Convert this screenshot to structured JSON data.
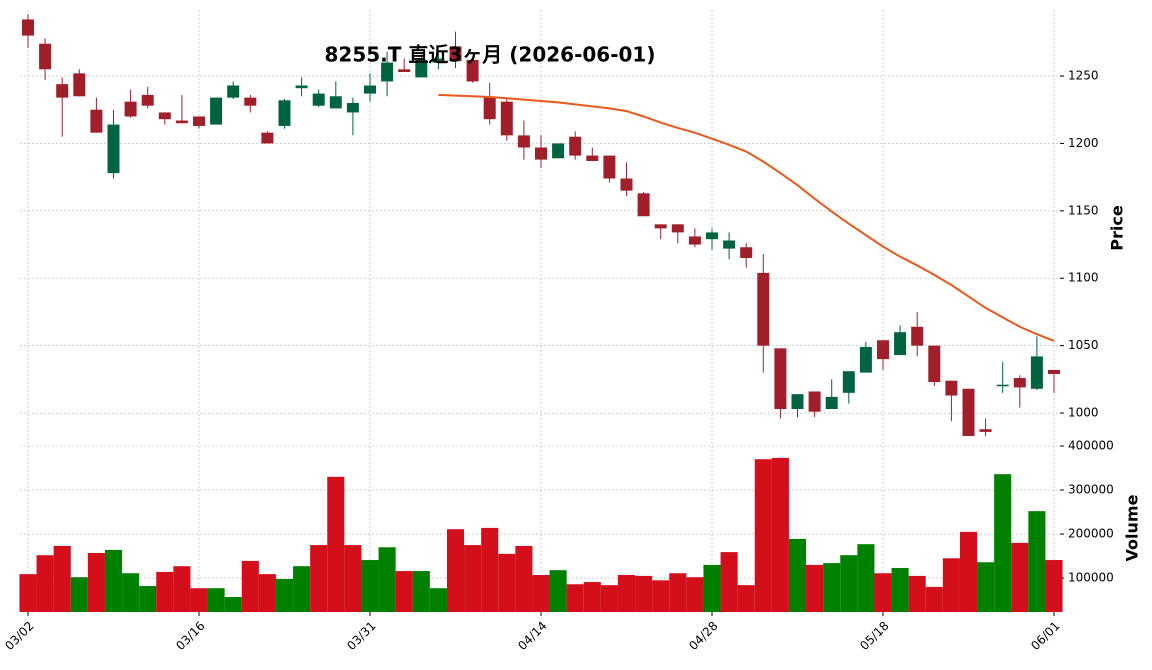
{
  "chart_data": {
    "type": "candlestick",
    "title": "8255.T 直近3ヶ月 (2026-06-01)",
    "categories": [
      "03/02",
      null,
      null,
      null,
      null,
      null,
      null,
      null,
      null,
      null,
      "03/16",
      null,
      null,
      null,
      null,
      null,
      null,
      null,
      null,
      null,
      "03/31",
      null,
      null,
      null,
      null,
      null,
      null,
      null,
      null,
      null,
      "04/14",
      null,
      null,
      null,
      null,
      null,
      null,
      null,
      null,
      null,
      "04/28",
      null,
      null,
      null,
      null,
      null,
      null,
      null,
      null,
      null,
      "05/18",
      null,
      null,
      null,
      null,
      null,
      null,
      null,
      null,
      null,
      "06/01"
    ],
    "open": [
      1292,
      1274,
      1244,
      1252,
      1225,
      1178,
      1231,
      1236,
      1223,
      1217,
      1220,
      1214,
      1234,
      1234,
      1208,
      1213,
      1241,
      1228,
      1226,
      1223,
      1237,
      1246,
      1255,
      1249,
      1260,
      1272,
      1262,
      1234,
      1231,
      1206,
      1197,
      1189,
      1205,
      1191,
      1191,
      1174,
      1163,
      1140,
      1140,
      1131,
      1129,
      1122,
      1123,
      1104,
      1048,
      1003,
      1016,
      1003,
      1015,
      1030,
      1054,
      1043,
      1064,
      1050,
      1024,
      1018,
      988,
      1020,
      1026,
      1018,
      1032
    ],
    "high": [
      1296,
      1278,
      1249,
      1255,
      1234,
      1225,
      1240,
      1242,
      1223,
      1236,
      1220,
      1234,
      1246,
      1236,
      1209,
      1233,
      1249,
      1240,
      1246,
      1234,
      1252,
      1268,
      1263,
      1266,
      1267,
      1283,
      1263,
      1245,
      1233,
      1217,
      1206,
      1200,
      1209,
      1197,
      1191,
      1186,
      1164,
      1140,
      1140,
      1137,
      1137,
      1134,
      1126,
      1118,
      1048,
      1014,
      1016,
      1025,
      1031,
      1053,
      1054,
      1065,
      1075,
      1050,
      1024,
      1018,
      996,
      1038,
      1028,
      1057,
      1032
    ],
    "low": [
      1271,
      1247,
      1205,
      1235,
      1208,
      1174,
      1219,
      1226,
      1214,
      1215,
      1211,
      1214,
      1233,
      1223,
      1200,
      1211,
      1235,
      1227,
      1226,
      1206,
      1231,
      1235,
      1253,
      1249,
      1255,
      1256,
      1245,
      1214,
      1202,
      1188,
      1182,
      1189,
      1188,
      1187,
      1171,
      1161,
      1146,
      1129,
      1126,
      1123,
      1121,
      1114,
      1108,
      1030,
      996,
      997,
      997,
      1003,
      1007,
      1030,
      1032,
      1043,
      1042,
      1020,
      994,
      983,
      983,
      1015,
      1004,
      1017,
      1015
    ],
    "close": [
      1280,
      1255,
      1234,
      1235,
      1208,
      1214,
      1220,
      1228,
      1218,
      1215,
      1213,
      1234,
      1243,
      1228,
      1200,
      1232,
      1243,
      1237,
      1235,
      1230,
      1243,
      1260,
      1253,
      1262,
      1263,
      1261,
      1246,
      1218,
      1206,
      1197,
      1188,
      1200,
      1191,
      1187,
      1174,
      1165,
      1146,
      1137,
      1134,
      1125,
      1134,
      1128,
      1115,
      1050,
      1003,
      1014,
      1001,
      1012,
      1031,
      1049,
      1040,
      1060,
      1050,
      1023,
      1013,
      983,
      986,
      1021,
      1019,
      1042,
      1029
    ],
    "up_color": "#006340",
    "down_color": "#a01f2a",
    "moving_average": {
      "color": "#e8581a",
      "values": [
        null,
        null,
        null,
        null,
        null,
        null,
        null,
        null,
        null,
        null,
        null,
        null,
        null,
        null,
        null,
        null,
        null,
        null,
        null,
        null,
        null,
        null,
        null,
        null,
        1236,
        1235.5,
        1235,
        1234.5,
        1233.5,
        1232.5,
        1231.5,
        1230.5,
        1229,
        1227.5,
        1226,
        1224,
        1220,
        1215.5,
        1211.5,
        1208,
        1203.5,
        1199,
        1194,
        1186.5,
        1178,
        1169,
        1159,
        1149.5,
        1140.5,
        1132,
        1123.5,
        1116,
        1109.5,
        1102.5,
        1095,
        1086.5,
        1078,
        1071,
        1064,
        1058.5,
        1053.5
      ]
    },
    "ylabel": "Price",
    "ylim": [
      980,
      1299
    ],
    "yticks": [
      1000,
      1050,
      1100,
      1150,
      1200,
      1250
    ],
    "grid": true,
    "volume": {
      "ylabel": "Volume",
      "values": [
        109000,
        152000,
        173000,
        102000,
        157000,
        164000,
        111000,
        82000,
        114000,
        127000,
        77000,
        77000,
        57000,
        139000,
        109000,
        98000,
        127000,
        175000,
        330000,
        175000,
        141000,
        170000,
        116000,
        116000,
        77000,
        211000,
        175000,
        214000,
        155000,
        173000,
        107000,
        118000,
        86000,
        91000,
        84000,
        107000,
        105000,
        95000,
        111000,
        102000,
        130000,
        159000,
        84000,
        370000,
        373000,
        189000,
        130000,
        134000,
        152000,
        177000,
        111000,
        123000,
        105000,
        80000,
        145000,
        205000,
        136000,
        336000,
        180000,
        252000,
        141000
      ],
      "ylim": [
        23000,
        413600
      ],
      "yticks": [
        100000,
        200000,
        300000,
        400000
      ],
      "up_color": "#008000",
      "down_color": "#d40f1c"
    }
  }
}
